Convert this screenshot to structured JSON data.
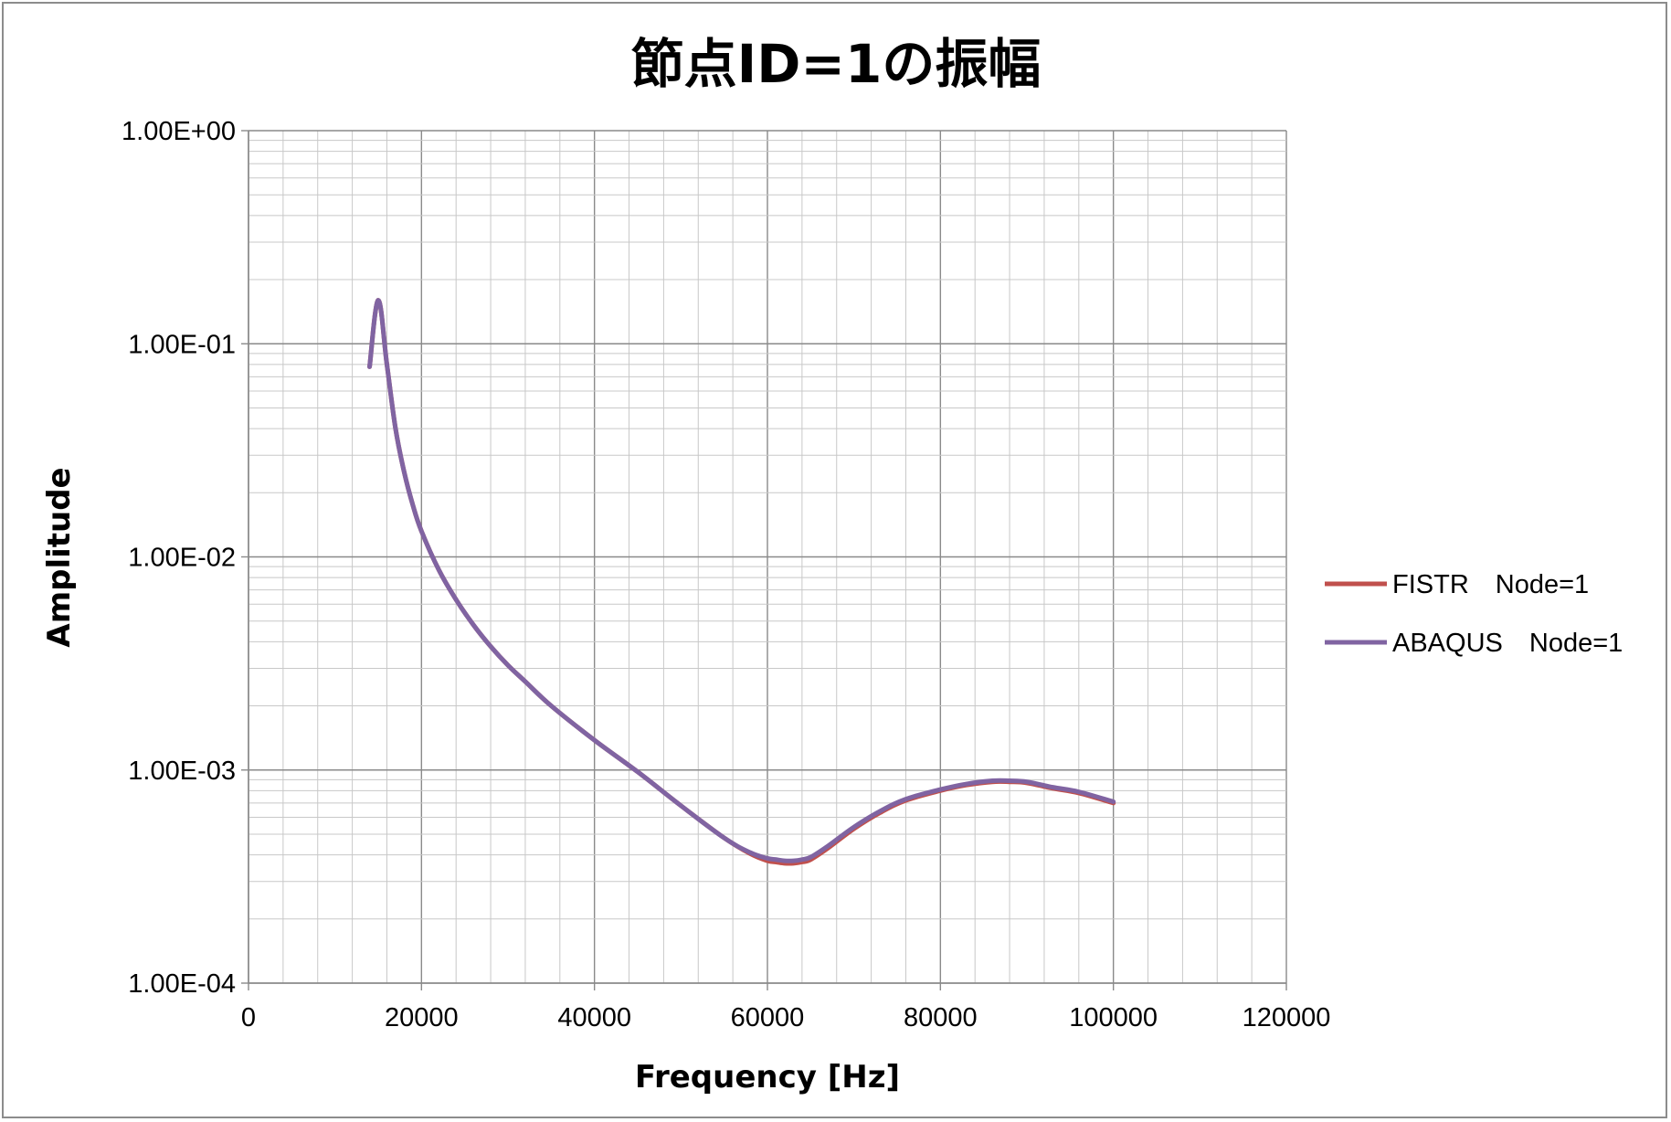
{
  "chart_data": {
    "type": "line",
    "title": "節点ID=1の振幅",
    "xlabel": "Frequency [Hz]",
    "ylabel": "Amplitude",
    "xlim": [
      0,
      120000
    ],
    "ylim": [
      0.0001,
      1
    ],
    "yscale": "log",
    "grid": true,
    "legend_position": "right",
    "x_ticks": [
      "0",
      "20000",
      "40000",
      "60000",
      "80000",
      "100000",
      "120000"
    ],
    "y_ticks": [
      "1.00E-04",
      "1.00E-03",
      "1.00E-02",
      "1.00E-01",
      "1.00E+00"
    ],
    "series": [
      {
        "name": "FISTR　Node=1",
        "color": "#c0504d",
        "x": [
          14000,
          15000,
          16000,
          17000,
          18000,
          19000,
          20000,
          22000,
          24000,
          26000,
          28000,
          30000,
          32000,
          35000,
          40000,
          45000,
          50000,
          55000,
          58000,
          60000,
          61000,
          62000,
          63000,
          64000,
          65000,
          67000,
          70000,
          73000,
          76000,
          80000,
          83000,
          86000,
          88000,
          90000,
          93000,
          96000,
          100000
        ],
        "values": [
          0.078,
          0.16,
          0.08,
          0.04,
          0.025,
          0.0175,
          0.0132,
          0.0087,
          0.0063,
          0.0048,
          0.0038,
          0.0031,
          0.0026,
          0.002,
          0.00138,
          0.00098,
          0.00068,
          0.00048,
          0.000405,
          0.000375,
          0.00037,
          0.000365,
          0.000365,
          0.00037,
          0.00038,
          0.00043,
          0.00053,
          0.00063,
          0.00072,
          0.0008,
          0.00085,
          0.00088,
          0.00088,
          0.00087,
          0.00082,
          0.00078,
          0.0007
        ]
      },
      {
        "name": "ABAQUS　Node=1",
        "color": "#8064a2",
        "x": [
          14000,
          15000,
          16000,
          17000,
          18000,
          19000,
          20000,
          22000,
          24000,
          26000,
          28000,
          30000,
          32000,
          35000,
          40000,
          45000,
          50000,
          55000,
          58000,
          60000,
          61000,
          62000,
          63000,
          64000,
          65000,
          67000,
          70000,
          73000,
          76000,
          80000,
          83000,
          86000,
          88000,
          90000,
          93000,
          96000,
          100000
        ],
        "values": [
          0.078,
          0.16,
          0.08,
          0.04,
          0.025,
          0.0175,
          0.0132,
          0.0087,
          0.0063,
          0.0048,
          0.0038,
          0.0031,
          0.0026,
          0.002,
          0.00138,
          0.00098,
          0.00068,
          0.00048,
          0.00041,
          0.000385,
          0.00038,
          0.000375,
          0.000375,
          0.00038,
          0.00039,
          0.00044,
          0.00054,
          0.00064,
          0.00073,
          0.00081,
          0.00086,
          0.00089,
          0.00089,
          0.00088,
          0.00083,
          0.00079,
          0.00071
        ]
      }
    ]
  }
}
